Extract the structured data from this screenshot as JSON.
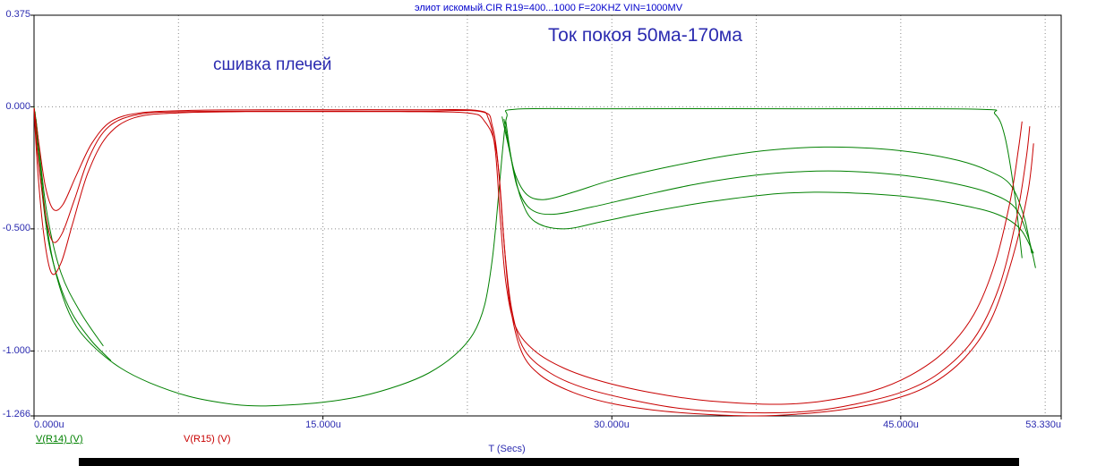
{
  "chart_data": {
    "type": "line",
    "title": "элиот искомый.CIR R19=400...1000 F=20KHZ VIN=1000MV",
    "annotations": [
      {
        "text": "Ток покоя 50ма-170ма"
      },
      {
        "text": "сшивка плечей"
      }
    ],
    "xlabel": "T (Secs)",
    "xlim": [
      0,
      53.33
    ],
    "ylim": [
      -1.266,
      0.375
    ],
    "grid_on": true,
    "x_ticks": [
      {
        "value": 0,
        "label": "0.000u"
      },
      {
        "value": 15,
        "label": "15.000u"
      },
      {
        "value": 30,
        "label": "30.000u"
      },
      {
        "value": 45,
        "label": "45.000u"
      },
      {
        "value": 53.33,
        "label": "53.330u"
      }
    ],
    "y_ticks": [
      {
        "value": 0.375,
        "label": "0.375"
      },
      {
        "value": 0,
        "label": "0.000"
      },
      {
        "value": -0.5,
        "label": "-0.500"
      },
      {
        "value": -1.0,
        "label": "-1.000"
      },
      {
        "value": -1.266,
        "label": "-1.266"
      }
    ],
    "x_grid": [
      7.5,
      15,
      22.5,
      30,
      37.5,
      45,
      52.5
    ],
    "y_grid": [
      0,
      -0.5,
      -1.0
    ],
    "legend": [
      {
        "label": "V(R14) (V)",
        "color": "#008000"
      },
      {
        "label": "V(R15) (V)",
        "color": "#c80000"
      }
    ],
    "colors": {
      "frame": "#000000",
      "grid": "#8a8a8a",
      "text": "#2b2bb0",
      "title": "#0000cc"
    },
    "series": [
      {
        "name": "V(R14) (V)",
        "run": "main-halfwave",
        "color": "#008000",
        "points": [
          [
            0,
            0
          ],
          [
            0.2,
            -0.12
          ],
          [
            0.5,
            -0.38
          ],
          [
            0.9,
            -0.6
          ],
          [
            1.5,
            -0.78
          ],
          [
            2.2,
            -0.9
          ],
          [
            3.2,
            -0.99
          ],
          [
            4.5,
            -1.07
          ],
          [
            6,
            -1.13
          ],
          [
            8,
            -1.185
          ],
          [
            10,
            -1.215
          ],
          [
            11.5,
            -1.225
          ],
          [
            13,
            -1.222
          ],
          [
            15,
            -1.21
          ],
          [
            17,
            -1.185
          ],
          [
            19,
            -1.14
          ],
          [
            20.5,
            -1.09
          ],
          [
            21.8,
            -1.02
          ],
          [
            22.8,
            -0.93
          ],
          [
            23.4,
            -0.81
          ],
          [
            23.8,
            -0.62
          ],
          [
            24.1,
            -0.38
          ],
          [
            24.35,
            -0.16
          ],
          [
            24.55,
            -0.04
          ],
          [
            25,
            -0.01
          ],
          [
            30,
            -0.008
          ],
          [
            40,
            -0.008
          ],
          [
            49,
            -0.01
          ],
          [
            49.9,
            -0.03
          ],
          [
            50.4,
            -0.12
          ],
          [
            50.9,
            -0.35
          ],
          [
            51.3,
            -0.62
          ]
        ]
      },
      {
        "name": "V(R14) (V)",
        "run": "start-strand-a",
        "color": "#008000",
        "points": [
          [
            0.05,
            -0.02
          ],
          [
            0.35,
            -0.3
          ],
          [
            0.75,
            -0.55
          ],
          [
            1.3,
            -0.72
          ],
          [
            2.0,
            -0.85
          ],
          [
            3.0,
            -0.96
          ],
          [
            4.0,
            -1.04
          ]
        ]
      },
      {
        "name": "V(R14) (V)",
        "run": "start-strand-b",
        "color": "#008000",
        "points": [
          [
            0.1,
            -0.05
          ],
          [
            0.3,
            -0.2
          ],
          [
            0.7,
            -0.45
          ],
          [
            1.4,
            -0.68
          ],
          [
            2.4,
            -0.84
          ],
          [
            3.6,
            -0.98
          ]
        ]
      },
      {
        "name": "V(R14) (V)",
        "run": "arc-1",
        "color": "#008000",
        "points": [
          [
            24.3,
            -0.04
          ],
          [
            24.6,
            -0.15
          ],
          [
            25.0,
            -0.28
          ],
          [
            25.6,
            -0.36
          ],
          [
            26.5,
            -0.38
          ],
          [
            28,
            -0.35
          ],
          [
            30,
            -0.3
          ],
          [
            33,
            -0.245
          ],
          [
            36,
            -0.2
          ],
          [
            38.5,
            -0.175
          ],
          [
            41,
            -0.165
          ],
          [
            43.5,
            -0.17
          ],
          [
            46,
            -0.19
          ],
          [
            48,
            -0.22
          ],
          [
            49.5,
            -0.26
          ],
          [
            50.7,
            -0.32
          ],
          [
            51.4,
            -0.45
          ],
          [
            51.8,
            -0.6
          ]
        ]
      },
      {
        "name": "V(R14) (V)",
        "run": "arc-2",
        "color": "#008000",
        "points": [
          [
            24.4,
            -0.05
          ],
          [
            24.7,
            -0.18
          ],
          [
            25.1,
            -0.33
          ],
          [
            25.8,
            -0.42
          ],
          [
            27,
            -0.44
          ],
          [
            29,
            -0.41
          ],
          [
            31.5,
            -0.365
          ],
          [
            34.5,
            -0.315
          ],
          [
            37.5,
            -0.28
          ],
          [
            40,
            -0.265
          ],
          [
            42.5,
            -0.265
          ],
          [
            45,
            -0.28
          ],
          [
            47.5,
            -0.31
          ],
          [
            49.5,
            -0.35
          ],
          [
            50.9,
            -0.41
          ],
          [
            51.6,
            -0.53
          ],
          [
            52,
            -0.66
          ]
        ]
      },
      {
        "name": "V(R14) (V)",
        "run": "arc-3",
        "color": "#008000",
        "points": [
          [
            24.5,
            -0.06
          ],
          [
            24.8,
            -0.22
          ],
          [
            25.3,
            -0.38
          ],
          [
            26,
            -0.47
          ],
          [
            27.5,
            -0.5
          ],
          [
            29.5,
            -0.47
          ],
          [
            32,
            -0.43
          ],
          [
            35,
            -0.39
          ],
          [
            38,
            -0.36
          ],
          [
            40.5,
            -0.35
          ],
          [
            43,
            -0.355
          ],
          [
            45.5,
            -0.37
          ],
          [
            48,
            -0.4
          ],
          [
            50,
            -0.44
          ],
          [
            51.2,
            -0.5
          ],
          [
            51.9,
            -0.6
          ]
        ]
      },
      {
        "name": "V(R15) (V)",
        "run": "run-a",
        "color": "#c80000",
        "points": [
          [
            0,
            -0.005
          ],
          [
            0.25,
            -0.15
          ],
          [
            0.6,
            -0.33
          ],
          [
            1.0,
            -0.42
          ],
          [
            1.5,
            -0.4
          ],
          [
            2.2,
            -0.28
          ],
          [
            3.0,
            -0.15
          ],
          [
            4.0,
            -0.06
          ],
          [
            5.5,
            -0.025
          ],
          [
            8,
            -0.015
          ],
          [
            12,
            -0.012
          ],
          [
            16,
            -0.012
          ],
          [
            20,
            -0.012
          ],
          [
            23.0,
            -0.015
          ],
          [
            23.6,
            -0.05
          ],
          [
            23.95,
            -0.18
          ],
          [
            24.2,
            -0.45
          ],
          [
            24.5,
            -0.72
          ],
          [
            25.0,
            -0.9
          ],
          [
            26,
            -1.0
          ],
          [
            27.5,
            -1.07
          ],
          [
            29.5,
            -1.125
          ],
          [
            32,
            -1.17
          ],
          [
            34.5,
            -1.2
          ],
          [
            37,
            -1.215
          ],
          [
            39,
            -1.218
          ],
          [
            41,
            -1.205
          ],
          [
            43.5,
            -1.165
          ],
          [
            45.5,
            -1.1
          ],
          [
            47.3,
            -1.0
          ],
          [
            48.8,
            -0.85
          ],
          [
            49.9,
            -0.64
          ],
          [
            50.7,
            -0.38
          ],
          [
            51.1,
            -0.18
          ],
          [
            51.3,
            -0.06
          ]
        ]
      },
      {
        "name": "V(R15) (V)",
        "run": "run-b",
        "color": "#c80000",
        "points": [
          [
            0,
            -0.005
          ],
          [
            0.2,
            -0.2
          ],
          [
            0.55,
            -0.42
          ],
          [
            0.95,
            -0.55
          ],
          [
            1.45,
            -0.52
          ],
          [
            2.1,
            -0.38
          ],
          [
            2.9,
            -0.2
          ],
          [
            3.9,
            -0.08
          ],
          [
            5.5,
            -0.03
          ],
          [
            8,
            -0.02
          ],
          [
            12,
            -0.018
          ],
          [
            16,
            -0.018
          ],
          [
            20,
            -0.018
          ],
          [
            23.2,
            -0.02
          ],
          [
            23.8,
            -0.08
          ],
          [
            24.15,
            -0.28
          ],
          [
            24.45,
            -0.6
          ],
          [
            24.85,
            -0.85
          ],
          [
            25.5,
            -1.0
          ],
          [
            26.8,
            -1.09
          ],
          [
            28.5,
            -1.15
          ],
          [
            31,
            -1.2
          ],
          [
            33.5,
            -1.235
          ],
          [
            36,
            -1.25
          ],
          [
            38.5,
            -1.253
          ],
          [
            40.5,
            -1.245
          ],
          [
            42.5,
            -1.22
          ],
          [
            45,
            -1.17
          ],
          [
            47,
            -1.09
          ],
          [
            48.8,
            -0.95
          ],
          [
            50.1,
            -0.74
          ],
          [
            51.0,
            -0.46
          ],
          [
            51.5,
            -0.22
          ],
          [
            51.7,
            -0.08
          ]
        ]
      },
      {
        "name": "V(R15) (V)",
        "run": "run-c",
        "color": "#c80000",
        "points": [
          [
            0,
            -0.005
          ],
          [
            0.18,
            -0.25
          ],
          [
            0.5,
            -0.52
          ],
          [
            0.9,
            -0.68
          ],
          [
            1.4,
            -0.64
          ],
          [
            2.0,
            -0.48
          ],
          [
            2.8,
            -0.27
          ],
          [
            3.8,
            -0.12
          ],
          [
            5.2,
            -0.045
          ],
          [
            7.5,
            -0.025
          ],
          [
            11,
            -0.02
          ],
          [
            15,
            -0.02
          ],
          [
            19,
            -0.02
          ],
          [
            22.5,
            -0.025
          ],
          [
            23.4,
            -0.06
          ],
          [
            24.0,
            -0.18
          ],
          [
            24.35,
            -0.5
          ],
          [
            24.7,
            -0.8
          ],
          [
            25.3,
            -1.0
          ],
          [
            26.3,
            -1.1
          ],
          [
            28,
            -1.17
          ],
          [
            30,
            -1.215
          ],
          [
            32.5,
            -1.245
          ],
          [
            35,
            -1.26
          ],
          [
            37.5,
            -1.266
          ],
          [
            39.8,
            -1.258
          ],
          [
            42,
            -1.24
          ],
          [
            44.5,
            -1.2
          ],
          [
            46.5,
            -1.14
          ],
          [
            48.3,
            -1.03
          ],
          [
            49.7,
            -0.87
          ],
          [
            50.8,
            -0.62
          ],
          [
            51.6,
            -0.35
          ],
          [
            51.9,
            -0.15
          ]
        ]
      }
    ]
  }
}
